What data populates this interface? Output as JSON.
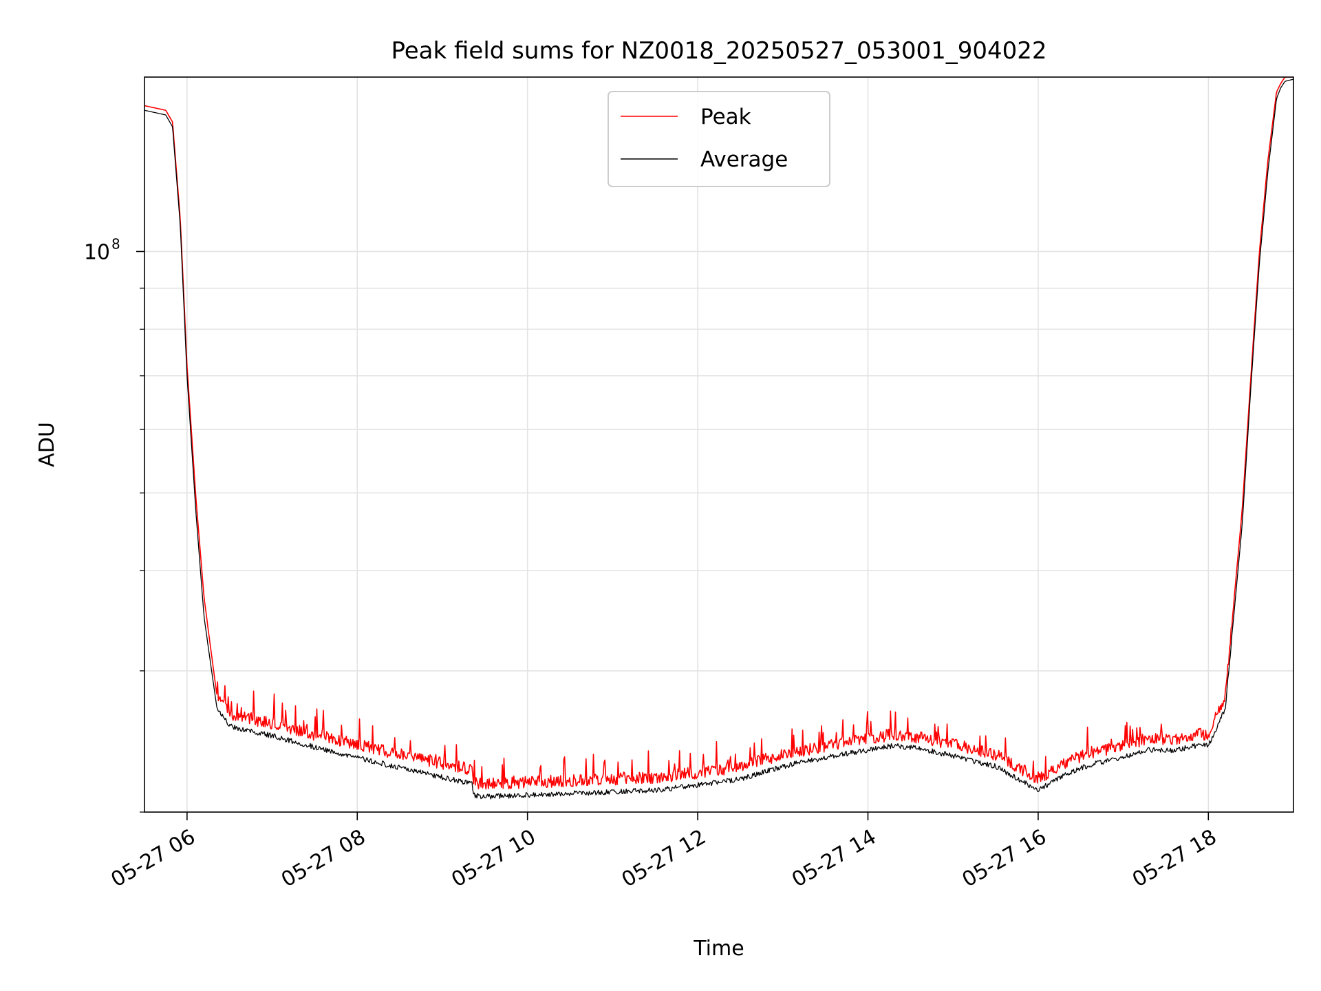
{
  "chart_data": {
    "type": "line",
    "title": "Peak field sums for NZ0018_20250527_053001_904022",
    "xlabel": "Time",
    "ylabel": "ADU",
    "yscale": "log",
    "ylim": [
      20000000,
      165000000
    ],
    "xlim_hours": [
      5.5,
      19.0
    ],
    "grid": true,
    "legend_position": "upper-center",
    "ytick_major": {
      "value": 100000000,
      "label": "10",
      "exponent": "8"
    },
    "yticks_minor": [
      20000000,
      30000000,
      40000000,
      50000000,
      60000000,
      70000000,
      80000000,
      90000000
    ],
    "xticks": [
      {
        "hour": 6,
        "label": "05-27 06"
      },
      {
        "hour": 8,
        "label": "05-27 08"
      },
      {
        "hour": 10,
        "label": "05-27 10"
      },
      {
        "hour": 12,
        "label": "05-27 12"
      },
      {
        "hour": 14,
        "label": "05-27 14"
      },
      {
        "hour": 16,
        "label": "05-27 16"
      },
      {
        "hour": 18,
        "label": "05-27 18"
      }
    ],
    "series": [
      {
        "name": "Peak",
        "color": "#ff0000",
        "x_hours": [
          5.5,
          5.75,
          5.83,
          5.92,
          6.0,
          6.1,
          6.2,
          6.35,
          6.5,
          7.0,
          7.5,
          8.0,
          8.5,
          9.0,
          9.35,
          9.36,
          9.5,
          10.0,
          10.5,
          11.0,
          11.5,
          12.0,
          12.5,
          13.0,
          13.5,
          14.0,
          14.3,
          14.6,
          15.0,
          15.5,
          16.0,
          16.3,
          16.6,
          17.0,
          17.3,
          17.6,
          17.85,
          18.0,
          18.2,
          18.4,
          18.5,
          18.6,
          18.7,
          18.8,
          18.85,
          18.9,
          19.0
        ],
        "values": [
          152000000,
          150000000,
          145000000,
          110000000,
          72000000,
          50000000,
          37000000,
          28000000,
          26500000,
          25800000,
          25000000,
          24300000,
          23600000,
          23000000,
          22600000,
          21800000,
          21700000,
          21800000,
          21900000,
          22000000,
          22100000,
          22400000,
          22800000,
          23600000,
          24200000,
          24700000,
          25000000,
          24800000,
          24300000,
          23600000,
          22000000,
          23000000,
          23700000,
          24200000,
          24700000,
          24700000,
          25000000,
          25000000,
          28000000,
          48000000,
          70000000,
          100000000,
          130000000,
          158000000,
          162000000,
          165000000,
          165000000
        ]
      },
      {
        "name": "Average",
        "color": "#000000",
        "x_hours": [
          5.5,
          5.75,
          5.83,
          5.92,
          6.0,
          6.1,
          6.2,
          6.35,
          6.5,
          7.0,
          7.5,
          8.0,
          8.5,
          9.0,
          9.35,
          9.36,
          9.5,
          10.0,
          10.5,
          11.0,
          11.5,
          12.0,
          12.5,
          13.0,
          13.5,
          14.0,
          14.3,
          14.6,
          15.0,
          15.5,
          16.0,
          16.3,
          16.6,
          17.0,
          17.3,
          17.6,
          17.85,
          18.0,
          18.2,
          18.4,
          18.5,
          18.6,
          18.7,
          18.8,
          18.85,
          18.9,
          19.0
        ],
        "values": [
          150000000,
          148000000,
          143000000,
          108000000,
          70000000,
          48000000,
          35000000,
          27000000,
          25600000,
          24900000,
          24100000,
          23400000,
          22700000,
          22100000,
          21700000,
          21000000,
          20900000,
          21000000,
          21100000,
          21200000,
          21300000,
          21600000,
          22000000,
          22800000,
          23400000,
          23900000,
          24200000,
          24000000,
          23500000,
          22800000,
          21300000,
          22200000,
          22900000,
          23400000,
          23900000,
          23900000,
          24200000,
          24200000,
          27000000,
          46000000,
          68000000,
          97000000,
          126000000,
          155000000,
          160000000,
          163000000,
          164000000
        ]
      }
    ]
  }
}
